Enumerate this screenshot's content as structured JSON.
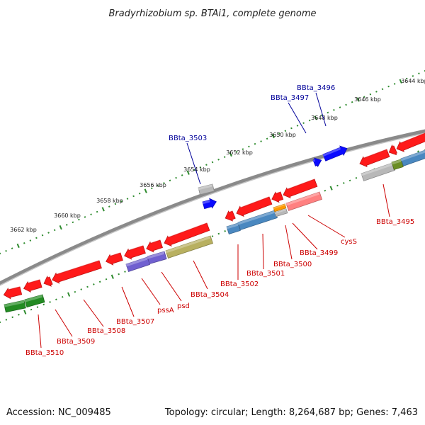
{
  "title": "Bradyrhizobium sp. BTAi1, complete genome",
  "footer": {
    "accession": "Accession: NC_009485",
    "topology": "Topology: circular; Length: 8,264,687 bp; Genes: 7,463"
  },
  "colors": {
    "backbone": "#7a7a7a",
    "ruler_dots": "#2e8b2e",
    "red": "#ff1a1a",
    "blue": "#0a0aff",
    "green": "#228b22",
    "purple": "#7060d0",
    "olive": "#b8b060",
    "steel": "#4a88c0",
    "grey": "#b8b8b8",
    "pink": "#ff8080",
    "orange": "#ff9a00",
    "olive_green": "#6b8e23",
    "label_red": "#cc0000",
    "label_blue": "#000099"
  },
  "upper_ruler": [
    {
      "label": "3644 kbp"
    },
    {
      "label": "3646 kbp"
    },
    {
      "label": "3648 kbp"
    },
    {
      "label": "3650 kbp"
    },
    {
      "label": "3652 kbp"
    },
    {
      "label": "3654 kbp"
    },
    {
      "label": "3656 kbp"
    },
    {
      "label": "3658 kbp"
    },
    {
      "label": "3660 kbp"
    },
    {
      "label": "3662 kbp"
    }
  ],
  "labels": [
    {
      "text": "BBta_3496",
      "color": "blue"
    },
    {
      "text": "BBta_3497",
      "color": "blue"
    },
    {
      "text": "BBta_3503",
      "color": "blue"
    },
    {
      "text": "BBta_3495",
      "color": "red"
    },
    {
      "text": "cysS",
      "color": "red"
    },
    {
      "text": "BBta_3499",
      "color": "red"
    },
    {
      "text": "BBta_3500",
      "color": "red"
    },
    {
      "text": "BBta_3501",
      "color": "red"
    },
    {
      "text": "BBta_3502",
      "color": "red"
    },
    {
      "text": "BBta_3504",
      "color": "red"
    },
    {
      "text": "psd",
      "color": "red"
    },
    {
      "text": "pssA",
      "color": "red"
    },
    {
      "text": "BBta_3507",
      "color": "red"
    },
    {
      "text": "BBta_3508",
      "color": "red"
    },
    {
      "text": "BBta_3509",
      "color": "red"
    },
    {
      "text": "BBta_3510",
      "color": "red"
    }
  ]
}
